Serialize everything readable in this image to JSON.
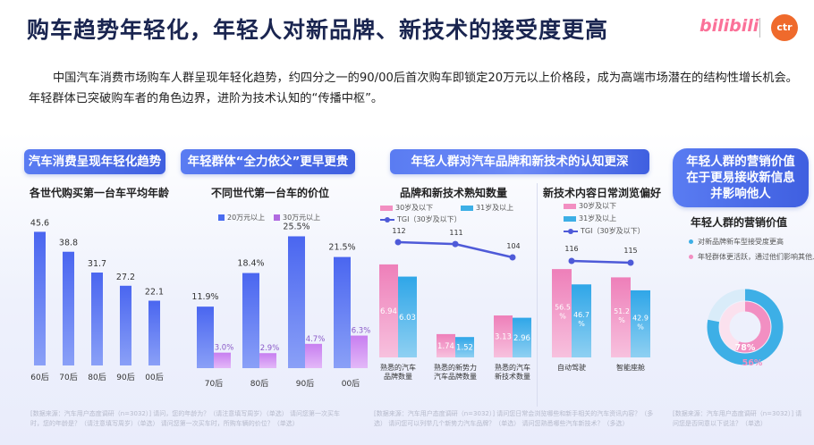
{
  "header": {
    "title": "购车趋势年轻化，年轻人对新品牌、新技术的接受度更高",
    "logo_bilibili": "bilibili",
    "logo_ctr": "ctr"
  },
  "intro_text": "中国汽车消费市场购车人群呈现年轻化趋势，约四分之一的90/00后首次购车即锁定20万元以上价格段，成为高端市场潜在的结构性增长机会。年轻群体已突破购车者的角色边界，进阶为技术认知的“传播中枢”。",
  "colors": {
    "accent": "#4a6cf0",
    "pink": "#f28fc2",
    "blue": "#3dafe6",
    "purple": "#8a63f2",
    "tgi_line": "#4e5ad8"
  },
  "panels": {
    "p1": {
      "title": "汽车消费呈现年轻化趋势",
      "subtitle": "各世代购买第一台车平均年龄",
      "footnote": "[数据来源：汽车用户态度调研（n=3032）] 请问，您的年龄为？（请注意填写周岁）（单选）  请问您第一次买车时，您的年龄是？（请注意填写周岁）（单选）  请问您第一次买车时，所购车辆的价位？（单选）"
    },
    "p2": {
      "title": "年轻群体“全力依父”更早更贵",
      "subtitle": "不同世代第一台车的价位",
      "footnote": ""
    },
    "p3": {
      "title": "年轻人群对汽车品牌和新技术的认知更深",
      "subtitle_left": "品牌和新技术熟知数量",
      "subtitle_right": "新技术内容日常浏览偏好",
      "footnote": "[数据来源：汽车用户态度调研（n=3032）] 请问您日常会浏览哪些和新手相关的汽车资讯内容？（多选）  请问您可以列举几个新势力汽车品牌？（单选）  请问您熟悉哪些汽车新技术？（多选）"
    },
    "p4": {
      "title_lines": [
        "年轻人群的营销价值",
        "在于更易接收新信息",
        "并影响他人"
      ],
      "subtitle": "年轻人群的营销价值",
      "footnote": "[数据来源：汽车用户态度调研（n=3032）] 请问您是否同意以下说法？（单选）"
    }
  },
  "chart_data": [
    {
      "type": "bar",
      "title": "各世代购买第一台车平均年龄",
      "categories": [
        "60后",
        "70后",
        "80后",
        "90后",
        "00后"
      ],
      "values": [
        45.6,
        38.8,
        31.7,
        27.2,
        22.1
      ],
      "ylim": [
        0,
        50
      ]
    },
    {
      "type": "bar",
      "title": "不同世代第一台车的价位",
      "categories": [
        "70后",
        "80后",
        "90后",
        "00后"
      ],
      "series": [
        {
          "name": "20万元以上",
          "values": [
            11.9,
            18.4,
            25.5,
            21.5
          ],
          "labels": [
            "11.9%",
            "18.4%",
            "25.5%",
            "21.5%"
          ]
        },
        {
          "name": "30万元以上",
          "values": [
            3.0,
            2.9,
            4.7,
            6.3
          ],
          "labels": [
            "3.0%",
            "2.9%",
            "4.7%",
            "6.3%"
          ]
        }
      ],
      "ylim": [
        0,
        28
      ]
    },
    {
      "type": "bar",
      "title": "品牌和新技术熟知数量",
      "categories": [
        "熟悉的汽车\n品牌数量",
        "熟悉的新势力\n汽车品牌数量",
        "熟悉的汽车\n新技术数量"
      ],
      "series": [
        {
          "name": "30岁及以下",
          "values": [
            6.94,
            1.74,
            3.13
          ]
        },
        {
          "name": "31岁及以上",
          "values": [
            6.03,
            1.52,
            2.96
          ]
        }
      ],
      "tgi": {
        "name": "TGI（30岁及以下）",
        "values": [
          112,
          111,
          104
        ]
      },
      "ylim": [
        0,
        10
      ]
    },
    {
      "type": "bar",
      "title": "新技术内容日常浏览偏好",
      "categories": [
        "自动驾驶",
        "智能座舱"
      ],
      "series": [
        {
          "name": "30岁及以下",
          "values": [
            56.5,
            51.2
          ],
          "labels": [
            "56.5\n%",
            "51.2\n%"
          ]
        },
        {
          "name": "31岁及以上",
          "values": [
            46.7,
            42.9
          ],
          "labels": [
            "46.7\n%",
            "42.9\n%"
          ]
        }
      ],
      "tgi": {
        "name": "TGI（30岁及以下）",
        "values": [
          116,
          115
        ]
      },
      "ylim": [
        0,
        80
      ]
    },
    {
      "type": "pie",
      "title": "年轻人群的营销价值",
      "series": [
        {
          "name": "对新品牌新车型接受度更高",
          "value": 78,
          "label": "78%"
        },
        {
          "name": "年轻群体更活跃，通过他们影响其他人群",
          "value": 56,
          "label": "56%"
        }
      ]
    }
  ]
}
